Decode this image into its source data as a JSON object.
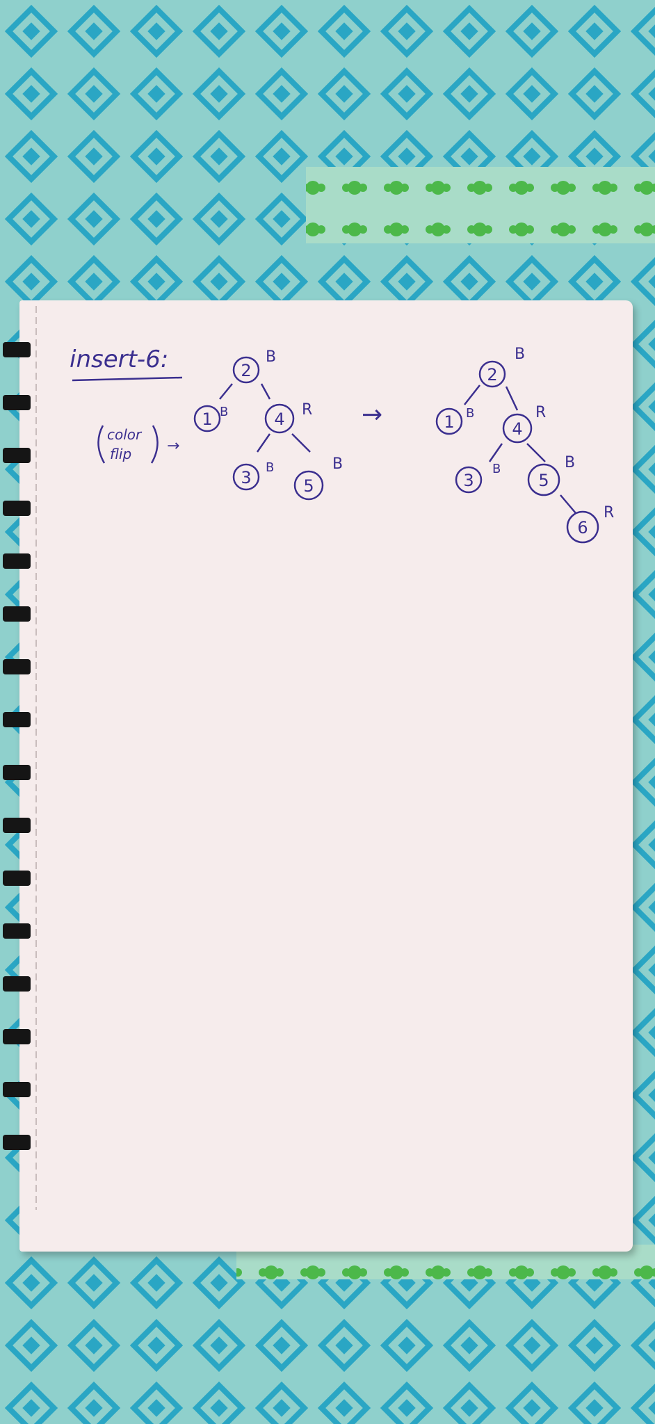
{
  "note": {
    "heading": "insert-6:",
    "side_note_line1": "color",
    "side_note_line2": "flip",
    "arrow_small": "→",
    "arrow_main": "→"
  },
  "tree_before": {
    "nodes": [
      {
        "key": "2",
        "color": "B"
      },
      {
        "key": "1",
        "color": "B"
      },
      {
        "key": "4",
        "color": "R"
      },
      {
        "key": "3",
        "color": "B"
      },
      {
        "key": "5",
        "color": "B"
      }
    ]
  },
  "tree_after": {
    "nodes": [
      {
        "key": "2",
        "color": "B"
      },
      {
        "key": "1",
        "color": "B"
      },
      {
        "key": "4",
        "color": "R"
      },
      {
        "key": "3",
        "color": "B"
      },
      {
        "key": "5",
        "color": "B"
      },
      {
        "key": "6",
        "color": "R"
      }
    ]
  },
  "colors": {
    "ink": "#3b2f8f",
    "paper": "#f6ecec",
    "cloth_teal": "#2aa6c4",
    "cloth_green": "#4cb84a"
  }
}
